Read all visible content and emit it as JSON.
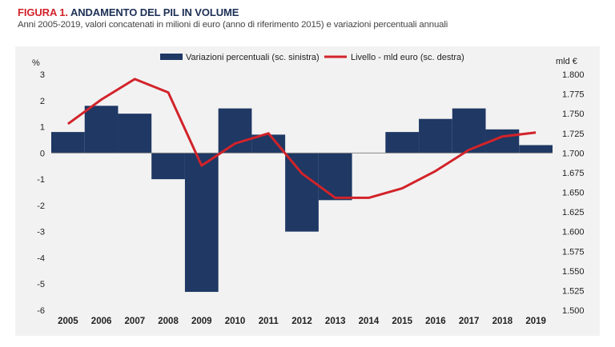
{
  "header": {
    "figure_label": "FIGURA 1.",
    "title": "ANDAMENTO DEL PIL IN VOLUME",
    "subtitle": "Anni 2005-2019, valori concatenati in milioni di euro (anno di riferimento 2015) e variazioni percentuali annuali"
  },
  "colors": {
    "bar": "#1f3864",
    "line": "#d2232a",
    "background": "#f2f2f2"
  },
  "chart_data": {
    "type": "bar",
    "categories": [
      "2005",
      "2006",
      "2007",
      "2008",
      "2009",
      "2010",
      "2011",
      "2012",
      "2013",
      "2014",
      "2015",
      "2016",
      "2017",
      "2018",
      "2019"
    ],
    "series": [
      {
        "name": "Variazioni percentuali (sc. sinistra)",
        "type": "bar",
        "axis": "left",
        "values": [
          0.8,
          1.8,
          1.5,
          -1.0,
          -5.3,
          1.7,
          0.7,
          -3.0,
          -1.8,
          0.0,
          0.8,
          1.3,
          1.7,
          0.9,
          0.3
        ]
      },
      {
        "name": "Livello - mld euro (sc. destra)",
        "type": "line",
        "axis": "right",
        "values": [
          1737,
          1768,
          1794,
          1777,
          1684,
          1712,
          1725,
          1674,
          1643,
          1643,
          1655,
          1677,
          1704,
          1721,
          1726
        ]
      }
    ],
    "left_axis": {
      "label": "%",
      "min": -6,
      "max": 3,
      "ticks": [
        "3",
        "2",
        "1",
        "0",
        "-1",
        "-2",
        "-3",
        "-4",
        "-5",
        "-6"
      ]
    },
    "right_axis": {
      "label": "mld €",
      "min": 1500,
      "max": 1800,
      "ticks": [
        "1.800",
        "1.775",
        "1.750",
        "1.725",
        "1.700",
        "1.675",
        "1.650",
        "1.625",
        "1.600",
        "1.575",
        "1.550",
        "1.525",
        "1.500"
      ]
    },
    "legend_position": "top-center",
    "grid": false
  }
}
